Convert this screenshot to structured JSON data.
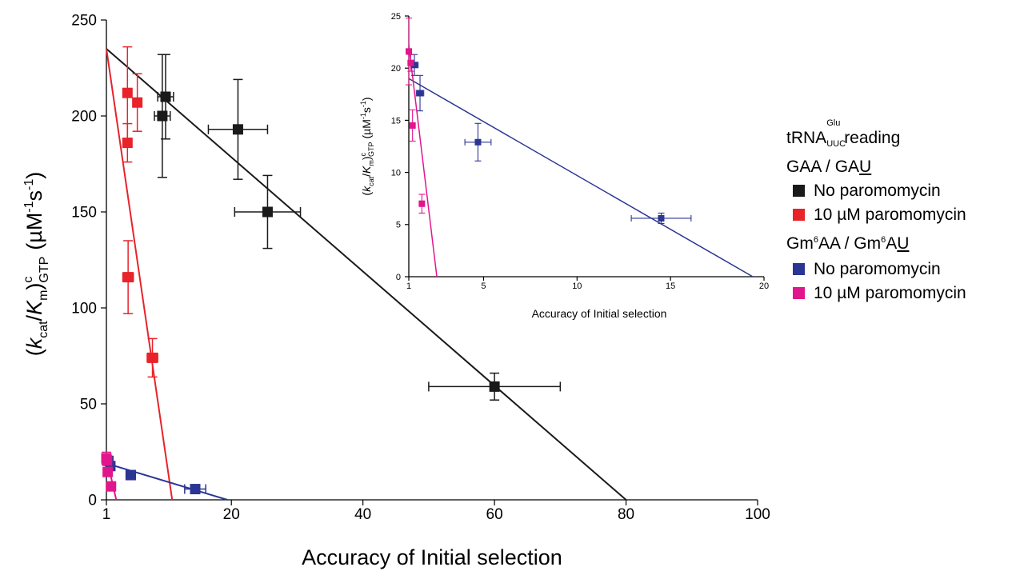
{
  "chart_data": [
    {
      "type": "scatter",
      "xlabel": "Accuracy of Initial selection",
      "ylabel": {
        "open": "(",
        "k": "k",
        "k_sub": "cat",
        "slash": "/",
        "K": "K",
        "K_sub": "m",
        "close": ")",
        "sup_c": "c",
        "sub_gtp": "GTP",
        "unit": "(µM",
        "unit_sup1": "-1",
        "unit_s": "s",
        "unit_sup2": "-1",
        "unit_close": ")"
      },
      "xlim": [
        1,
        100
      ],
      "ylim": [
        0,
        250
      ],
      "xticks": [
        1,
        20,
        40,
        60,
        80,
        100
      ],
      "yticks": [
        0,
        50,
        100,
        150,
        200,
        250
      ],
      "series": [
        {
          "color": "#1a1a1a",
          "points": [
            {
              "x": 9.5,
              "y": 200,
              "xerr": 1.2,
              "yerr": 32
            },
            {
              "x": 10.0,
              "y": 210,
              "xerr": 1.2,
              "yerr": 22
            },
            {
              "x": 21.0,
              "y": 193,
              "xerr": 4.5,
              "yerr": 26
            },
            {
              "x": 25.5,
              "y": 150,
              "xerr": 5.0,
              "yerr": 19
            },
            {
              "x": 60.0,
              "y": 59,
              "xerr": 10.0,
              "yerr": 7
            }
          ],
          "fit": [
            [
              1,
              235
            ],
            [
              80,
              0
            ]
          ]
        },
        {
          "color": "#e8232a",
          "points": [
            {
              "x": 4.2,
              "y": 212,
              "xerr": 0.6,
              "yerr": 24
            },
            {
              "x": 5.7,
              "y": 207,
              "xerr": 0.6,
              "yerr": 15
            },
            {
              "x": 4.2,
              "y": 186,
              "xerr": 0.6,
              "yerr": 10
            },
            {
              "x": 4.3,
              "y": 116,
              "xerr": 0.8,
              "yerr": 19
            },
            {
              "x": 8.0,
              "y": 74,
              "xerr": 0.8,
              "yerr": 10
            }
          ],
          "fit": [
            [
              1,
              235
            ],
            [
              11,
              0
            ]
          ]
        },
        {
          "color": "#2b3593",
          "points": [
            {
              "x": 1.3,
              "y": 20.3,
              "xerr": 0.2,
              "yerr": 1.0
            },
            {
              "x": 1.6,
              "y": 17.6,
              "xerr": 0.2,
              "yerr": 1.7
            },
            {
              "x": 4.7,
              "y": 12.9,
              "xerr": 0.7,
              "yerr": 1.8
            },
            {
              "x": 14.5,
              "y": 5.6,
              "xerr": 1.6,
              "yerr": 0.5
            }
          ],
          "fit": [
            [
              1,
              19
            ],
            [
              19.4,
              0
            ]
          ]
        },
        {
          "color": "#e2168c",
          "points": [
            {
              "x": 1.0,
              "y": 21.6,
              "xerr": 0.0,
              "yerr": 3.2
            },
            {
              "x": 1.2,
              "y": 14.5,
              "xerr": 0.1,
              "yerr": 1.5
            },
            {
              "x": 1.1,
              "y": 20.5,
              "xerr": 0.1,
              "yerr": 0.8
            },
            {
              "x": 1.7,
              "y": 7.0,
              "xerr": 0.1,
              "yerr": 0.9
            }
          ],
          "fit": [
            [
              1,
              22.2
            ],
            [
              2.5,
              0
            ]
          ]
        }
      ]
    },
    {
      "type": "scatter",
      "xlabel": "Accuracy of Initial selection",
      "ylabel": {
        "open": "(",
        "k": "k",
        "k_sub": "cat",
        "slash": "/",
        "K": "K",
        "K_sub": "m",
        "close": ")",
        "sup_c": "c",
        "sub_gtp": "GTP",
        "unit": "(µM",
        "unit_sup1": "-1",
        "unit_s": "s",
        "unit_sup2": "-1",
        "unit_close": ")"
      },
      "xlim": [
        1,
        20
      ],
      "ylim": [
        0,
        25
      ],
      "xticks": [
        1,
        5,
        10,
        15,
        20
      ],
      "yticks": [
        0,
        5,
        10,
        15,
        20,
        25
      ],
      "series": [
        {
          "color": "#2b3593",
          "points": [
            {
              "x": 1.3,
              "y": 20.3,
              "xerr": 0.2,
              "yerr": 1.0
            },
            {
              "x": 1.6,
              "y": 17.6,
              "xerr": 0.2,
              "yerr": 1.7
            },
            {
              "x": 4.7,
              "y": 12.9,
              "xerr": 0.7,
              "yerr": 1.8
            },
            {
              "x": 14.5,
              "y": 5.6,
              "xerr": 1.6,
              "yerr": 0.5
            }
          ],
          "fit": [
            [
              1,
              19
            ],
            [
              19.4,
              0
            ]
          ]
        },
        {
          "color": "#e2168c",
          "points": [
            {
              "x": 1.0,
              "y": 21.6,
              "xerr": 0.0,
              "yerr": 3.2
            },
            {
              "x": 1.2,
              "y": 14.5,
              "xerr": 0.1,
              "yerr": 1.5
            },
            {
              "x": 1.1,
              "y": 20.5,
              "xerr": 0.1,
              "yerr": 0.8
            },
            {
              "x": 1.7,
              "y": 7.0,
              "xerr": 0.1,
              "yerr": 0.9
            }
          ],
          "fit": [
            [
              1,
              22.2
            ],
            [
              2.5,
              0
            ]
          ]
        }
      ]
    }
  ],
  "legend": {
    "title": {
      "trna": "tRNA",
      "sup": "Glu",
      "sub": "UUC",
      "rest": "reading"
    },
    "group1": {
      "title_a": "GAA / GA",
      "title_u": "U"
    },
    "group2": {
      "title_gm1": "Gm",
      "sup1": "6",
      "title_aa": "AA / Gm",
      "sup2": "6",
      "title_a": "A",
      "title_u": "U"
    },
    "items": [
      {
        "label": "No paromomycin",
        "color": "#1a1a1a"
      },
      {
        "label": "10 µM paromomycin",
        "color": "#e8232a"
      },
      {
        "label": "No paromomycin",
        "color": "#2b3593"
      },
      {
        "label": "10 µM paromomycin",
        "color": "#e2168c"
      }
    ]
  }
}
